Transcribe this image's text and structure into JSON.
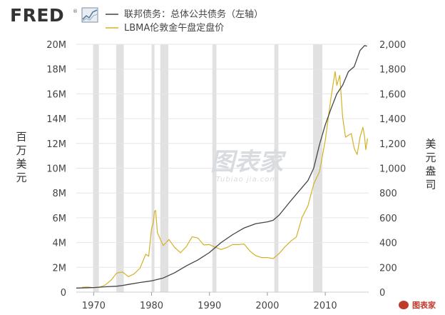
{
  "header": {
    "brand": "FRED",
    "brand_mark": "®"
  },
  "watermark": {
    "main": "图表家",
    "sub": "Tubiao jia.com"
  },
  "corner_logo": {
    "text": "图表家"
  },
  "chart_data": {
    "type": "line",
    "x_range": [
      1967,
      2017.5
    ],
    "x_ticks": [
      1970,
      1980,
      1990,
      2000,
      2010
    ],
    "x_tick_labels": [
      "1970",
      "1980",
      "1990",
      "2000",
      "2010"
    ],
    "left_axis": {
      "title": "百万美元",
      "range": [
        0,
        20000000
      ],
      "ticks": [
        0,
        2000000,
        4000000,
        6000000,
        8000000,
        10000000,
        12000000,
        14000000,
        16000000,
        18000000,
        20000000
      ],
      "tick_labels": [
        "0",
        "2M",
        "4M",
        "6M",
        "8M",
        "10M",
        "12M",
        "14M",
        "16M",
        "18M",
        "20M"
      ]
    },
    "right_axis": {
      "title": "美元盎司",
      "range": [
        0,
        2000
      ],
      "ticks": [
        0,
        200,
        400,
        600,
        800,
        1000,
        1200,
        1400,
        1600,
        1800,
        2000
      ],
      "tick_labels": [
        "0",
        "200",
        "400",
        "600",
        "800",
        "1,000",
        "1,200",
        "1,400",
        "1,600",
        "1,800",
        "2,000"
      ]
    },
    "recessions": [
      [
        1969.9,
        1970.9
      ],
      [
        1973.9,
        1975.2
      ],
      [
        1980.0,
        1980.5
      ],
      [
        1981.5,
        1982.9
      ],
      [
        1990.5,
        1991.2
      ],
      [
        2001.2,
        2001.9
      ],
      [
        2007.9,
        2009.5
      ]
    ],
    "grid": true,
    "series": [
      {
        "name": "联邦债务：总体公共债务（左轴）",
        "axis": "left",
        "color": "#444444",
        "points": [
          [
            1967,
            330000
          ],
          [
            1969,
            360000
          ],
          [
            1970,
            370000
          ],
          [
            1972,
            430000
          ],
          [
            1974,
            480000
          ],
          [
            1975,
            540000
          ],
          [
            1976,
            620000
          ],
          [
            1978,
            780000
          ],
          [
            1980,
            910000
          ],
          [
            1982,
            1140000
          ],
          [
            1984,
            1570000
          ],
          [
            1986,
            2120000
          ],
          [
            1988,
            2600000
          ],
          [
            1990,
            3200000
          ],
          [
            1992,
            4000000
          ],
          [
            1994,
            4640000
          ],
          [
            1996,
            5180000
          ],
          [
            1998,
            5530000
          ],
          [
            2000,
            5670000
          ],
          [
            2001,
            5800000
          ],
          [
            2002,
            6200000
          ],
          [
            2004,
            7350000
          ],
          [
            2006,
            8450000
          ],
          [
            2007,
            9000000
          ],
          [
            2008,
            10000000
          ],
          [
            2009,
            11900000
          ],
          [
            2010,
            13500000
          ],
          [
            2011,
            14800000
          ],
          [
            2012,
            16000000
          ],
          [
            2013,
            16700000
          ],
          [
            2014,
            17800000
          ],
          [
            2015,
            18200000
          ],
          [
            2016,
            19500000
          ],
          [
            2016.8,
            19900000
          ],
          [
            2017.2,
            19850000
          ]
        ]
      },
      {
        "name": "LBMA伦敦金午盘定盘价",
        "axis": "right",
        "color": "#d4b227",
        "points": [
          [
            1968,
            39
          ],
          [
            1969,
            41
          ],
          [
            1970,
            36
          ],
          [
            1971,
            40
          ],
          [
            1972,
            58
          ],
          [
            1973,
            97
          ],
          [
            1974,
            155
          ],
          [
            1975,
            162
          ],
          [
            1976,
            125
          ],
          [
            1977,
            148
          ],
          [
            1978,
            193
          ],
          [
            1979,
            306
          ],
          [
            1979.5,
            290
          ],
          [
            1980,
            512
          ],
          [
            1980.3,
            560
          ],
          [
            1980.5,
            650
          ],
          [
            1980.7,
            660
          ],
          [
            1981,
            480
          ],
          [
            1982,
            376
          ],
          [
            1983,
            425
          ],
          [
            1984,
            360
          ],
          [
            1985,
            318
          ],
          [
            1986,
            368
          ],
          [
            1987,
            447
          ],
          [
            1988,
            437
          ],
          [
            1989,
            381
          ],
          [
            1990,
            384
          ],
          [
            1991,
            362
          ],
          [
            1992,
            344
          ],
          [
            1993,
            360
          ],
          [
            1994,
            384
          ],
          [
            1995,
            384
          ],
          [
            1996,
            388
          ],
          [
            1997,
            331
          ],
          [
            1998,
            294
          ],
          [
            1999,
            279
          ],
          [
            2000,
            279
          ],
          [
            2001,
            271
          ],
          [
            2002,
            310
          ],
          [
            2003,
            364
          ],
          [
            2004,
            410
          ],
          [
            2005,
            445
          ],
          [
            2006,
            604
          ],
          [
            2007,
            696
          ],
          [
            2008,
            872
          ],
          [
            2009,
            972
          ],
          [
            2010,
            1225
          ],
          [
            2011,
            1572
          ],
          [
            2011.7,
            1780
          ],
          [
            2012,
            1669
          ],
          [
            2012.5,
            1750
          ],
          [
            2013,
            1411
          ],
          [
            2013.5,
            1250
          ],
          [
            2014,
            1266
          ],
          [
            2014.5,
            1280
          ],
          [
            2015,
            1160
          ],
          [
            2015.5,
            1110
          ],
          [
            2016,
            1250
          ],
          [
            2016.5,
            1330
          ],
          [
            2016.8,
            1250
          ],
          [
            2017,
            1150
          ],
          [
            2017.3,
            1240
          ]
        ]
      }
    ]
  }
}
